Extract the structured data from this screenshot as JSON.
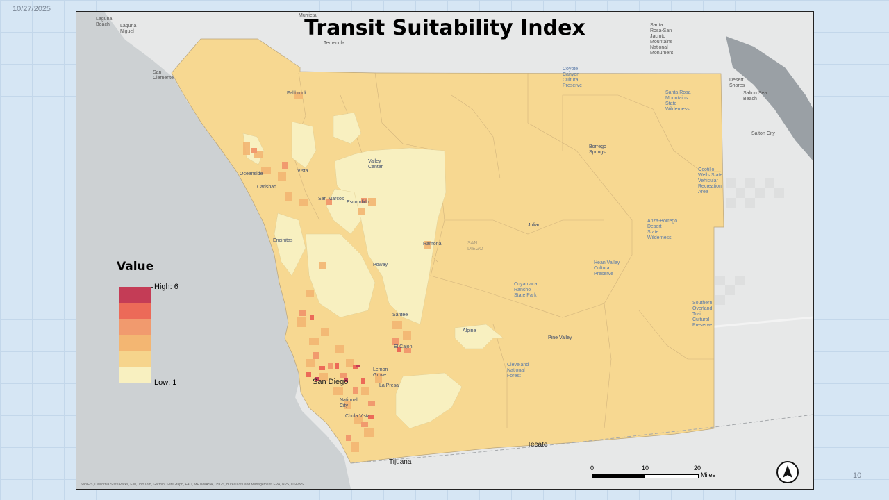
{
  "slide": {
    "date": "10/27/2025",
    "page_number": "10"
  },
  "map": {
    "title": "Transit Suitability Index",
    "attribution": "SanGIS, California State Parks, Esri, TomTom, Garmin, SafeGraph, FAO, METI/NASA, USGS, Bureau of Land Management, EPA, NPS, USFWS",
    "places": {
      "laguna_beach": "Laguna\nBeach",
      "laguna_niguel": "Laguna\nNiguel",
      "murrieta": "Murrieta",
      "temecula": "Temecula",
      "san_clemente": "San\nClemente",
      "santa_rosa": "Santa\nRosa-San\nJacinto\nMountains\nNational\nMonument",
      "coyote_canyon": "Coyote\nCanyon\nCultural\nPreserve",
      "desert_shores": "Desert\nShores",
      "salton_sea_beach": "Salton Sea\nBeach",
      "salton_city": "Salton City",
      "santa_rosa_wilderness": "Santa Rosa\nMountains\nState\nWilderness",
      "fallbrook": "Fallbrook",
      "borrego_springs": "Borrego\nSprings",
      "ocotillo_wells": "Ocotillo\nWells State\nVehicular\nRecreation\nArea",
      "valley_center": "Valley\nCenter",
      "oceanside": "Oceanside",
      "vista": "Vista",
      "carlsbad": "Carlsbad",
      "san_marcos": "San Marcos",
      "escondido": "Escondido",
      "julian": "Julian",
      "anza_borrego": "Anza-Borrego\nDesert\nState\nWilderness",
      "encinitas": "Encinitas",
      "ramona": "Ramona",
      "san_diego_county": "SAN\nDIEGO",
      "poway": "Poway",
      "hean_valley": "Hean Valley\nCultural\nPreserve",
      "cuyamaca": "Cuyamaca\nRancho\nState Park",
      "santee": "Santee",
      "southern_overland": "Southern\nOverland\nTrail\nCultural\nPreserve",
      "alpine": "Alpine",
      "el_cajon": "El Cajon",
      "pine_valley": "Pine Valley",
      "cleveland_forest": "Cleveland\nNational\nForest",
      "lemon_grove": "Lemon\nGrove",
      "san_diego": "San Diego",
      "la_presa": "La Presa",
      "national_city": "National\nCity",
      "chula_vista": "Chula Vista",
      "tecate": "Tecate",
      "tijuana": "Tijuana"
    }
  },
  "legend": {
    "title": "Value",
    "high_label": "High: 6",
    "low_label": "Low: 1",
    "colors": [
      "#c43c56",
      "#ec6a58",
      "#f19a6e",
      "#f3b672",
      "#f6d48c",
      "#f8f0c0"
    ]
  },
  "scalebar": {
    "labels": [
      "0",
      "10",
      "20"
    ],
    "unit": "Miles"
  },
  "colors": {
    "ocean": "#cdd1d3",
    "land": "#e7e8e8",
    "county_base": "#f7d891",
    "low_tract": "#f8f0c0",
    "hot_spot": "#ec6a58"
  }
}
